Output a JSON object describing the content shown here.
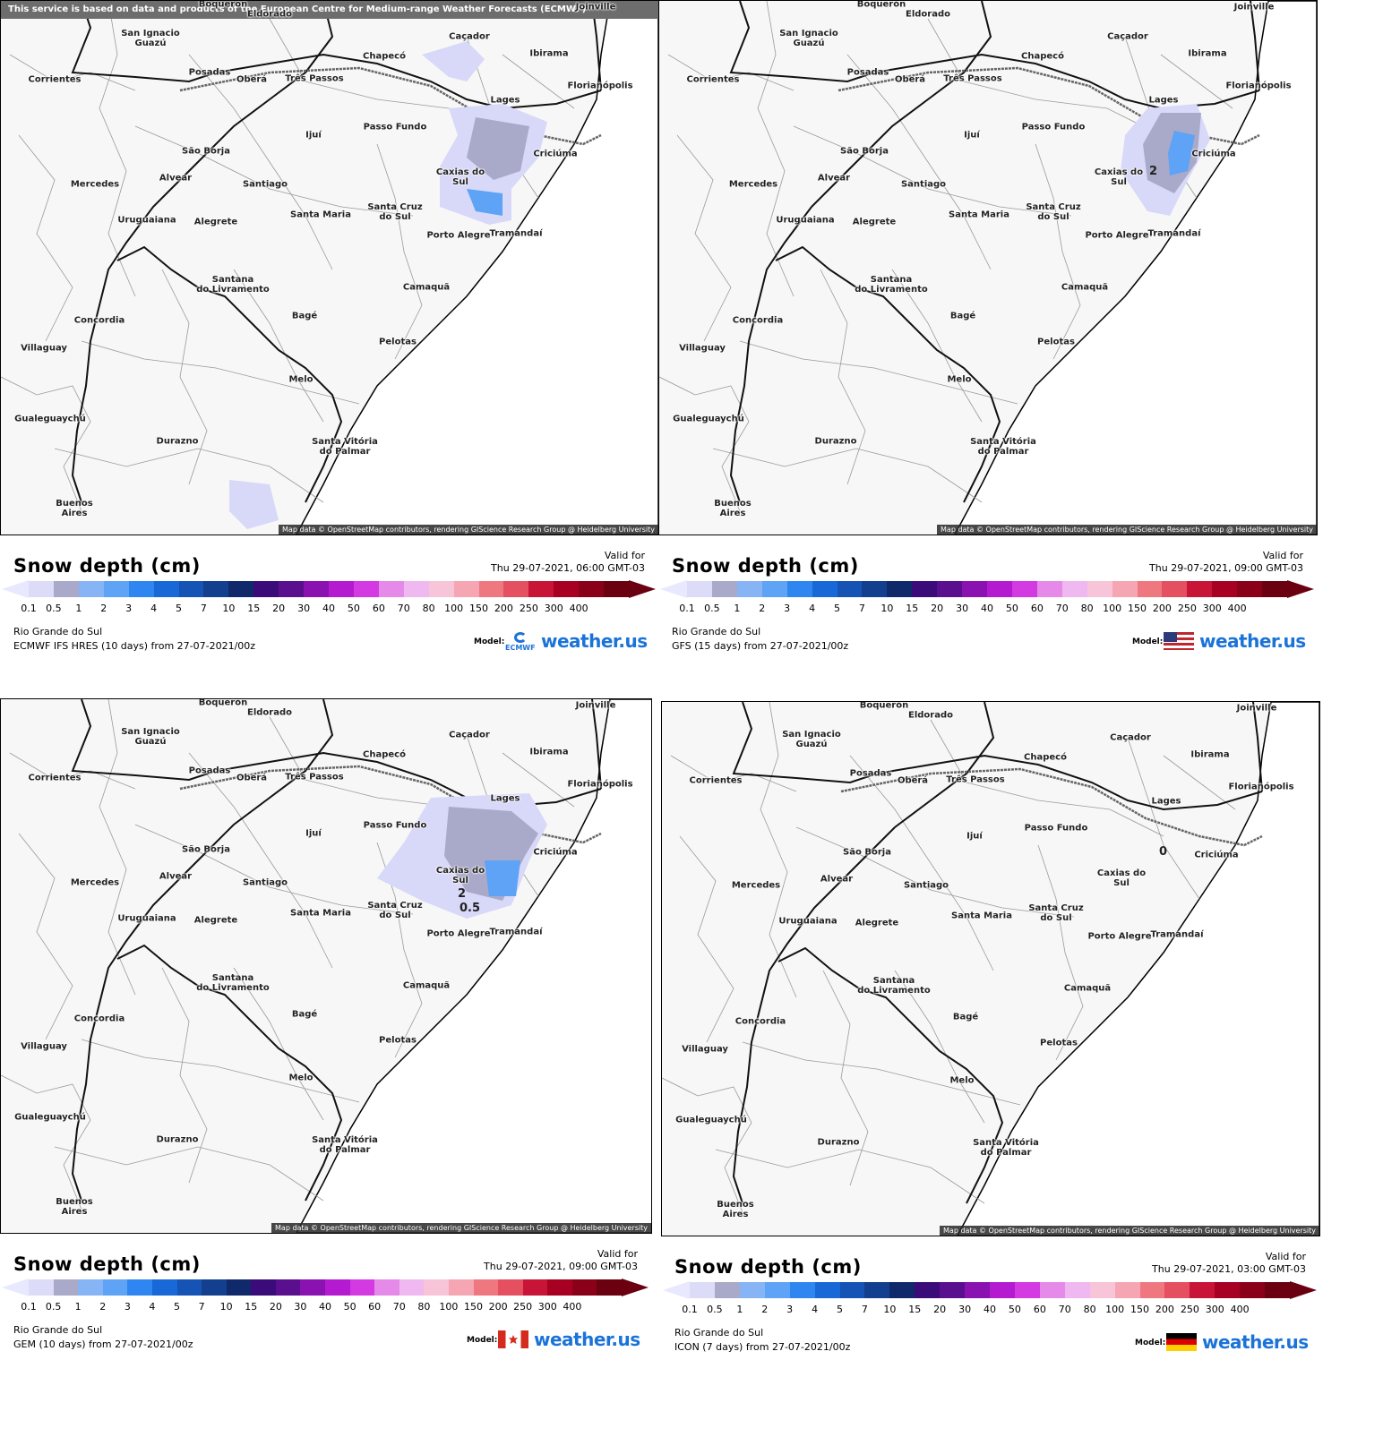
{
  "panels": [
    {
      "id": "p1",
      "top_note": "This service is based on data and products of the European Centre for Medium-range Weather Forecasts (ECMWF)",
      "title": "Snow depth (cm)",
      "valid_label": "Valid for",
      "valid_time": "Thu 29-07-2021, 06:00 GMT-03",
      "region": "Rio Grande do Sul",
      "model_run": "ECMWF IFS HRES (10 days)  from  27-07-2021/00z",
      "model_label": "Model:",
      "model_logo": "ecmwf-logo",
      "model_logo_text": "ECMWF",
      "brand": "weather.us",
      "attribution": "Map data © OpenStreetMap contributors, rendering GIScience Research Group @ Heidelberg University",
      "contour_labels": []
    },
    {
      "id": "p2",
      "title": "Snow depth (cm)",
      "valid_label": "Valid for",
      "valid_time": "Thu 29-07-2021, 09:00 GMT-03",
      "region": "Rio Grande do Sul",
      "model_run": "GFS (15 days)  from  27-07-2021/00z",
      "model_label": "Model:",
      "model_logo": "us-flag",
      "brand": "weather.us",
      "attribution": "Map data © OpenStreetMap contributors, rendering GIScience Research Group @ Heidelberg University",
      "contour_labels": [
        "2"
      ]
    },
    {
      "id": "p3",
      "title": "Snow depth (cm)",
      "valid_label": "Valid for",
      "valid_time": "Thu 29-07-2021, 09:00 GMT-03",
      "region": "Rio Grande do Sul",
      "model_run": "GEM (10 days)  from  27-07-2021/00z",
      "model_label": "Model:",
      "model_logo": "canada-flag",
      "brand": "weather.us",
      "attribution": "Map data © OpenStreetMap contributors, rendering GIScience Research Group @ Heidelberg University",
      "contour_labels": [
        "0.5",
        "2"
      ]
    },
    {
      "id": "p4",
      "title": "Snow depth (cm)",
      "valid_label": "Valid for",
      "valid_time": "Thu 29-07-2021, 03:00 GMT-03",
      "region": "Rio Grande do Sul",
      "model_run": "ICON (7 days)  from  27-07-2021/00z",
      "model_label": "Model:",
      "model_logo": "germany-flag",
      "brand": "weather.us",
      "attribution": "Map data © OpenStreetMap contributors, rendering GIScience Research Group @ Heidelberg University",
      "contour_labels": [
        "0"
      ]
    }
  ],
  "scale": {
    "ticks": [
      "0.1",
      "0.5",
      "1",
      "2",
      "3",
      "4",
      "5",
      "7",
      "10",
      "15",
      "20",
      "30",
      "40",
      "50",
      "60",
      "70",
      "80",
      "100",
      "150",
      "200",
      "250",
      "300",
      "400"
    ],
    "colors": [
      "#dcdcf8",
      "#a9a9c9",
      "#86b4f5",
      "#5ea3f5",
      "#2f86f0",
      "#1868d8",
      "#1553b5",
      "#133f8f",
      "#10296a",
      "#3b0b7a",
      "#5a0f8f",
      "#8a12b0",
      "#b41bd0",
      "#d43ae2",
      "#e58ae8",
      "#f0b8f0",
      "#f7c4d8",
      "#f6a6b3",
      "#ef7880",
      "#e45060",
      "#c81436",
      "#a80022",
      "#8a0018",
      "#6a0010"
    ]
  },
  "cities": [
    {
      "name": "San Ignacio\nGuazú"
    },
    {
      "name": "Caçador"
    },
    {
      "name": "Chapecó"
    },
    {
      "name": "Ibirama"
    },
    {
      "name": "Posadas"
    },
    {
      "name": "Oberá"
    },
    {
      "name": "Três Passos"
    },
    {
      "name": "Corrientes"
    },
    {
      "name": "Florianópolis"
    },
    {
      "name": "Lages"
    },
    {
      "name": "Passo Fundo"
    },
    {
      "name": "Ijuí"
    },
    {
      "name": "São Borja"
    },
    {
      "name": "Criciúma"
    },
    {
      "name": "Caxias do\nSul"
    },
    {
      "name": "Mercedes"
    },
    {
      "name": "Alvear"
    },
    {
      "name": "Santiago"
    },
    {
      "name": "Uruguaiana"
    },
    {
      "name": "Alegrete"
    },
    {
      "name": "Santa Maria"
    },
    {
      "name": "Santa Cruz\ndo Sul"
    },
    {
      "name": "Porto Alegre"
    },
    {
      "name": "Tramandaí"
    },
    {
      "name": "Santana\ndo Livramento"
    },
    {
      "name": "Camaquã"
    },
    {
      "name": "Concordia"
    },
    {
      "name": "Bagé"
    },
    {
      "name": "Villaguay"
    },
    {
      "name": "Pelotas"
    },
    {
      "name": "Melo"
    },
    {
      "name": "Gualeguaychú"
    },
    {
      "name": "Durazno"
    },
    {
      "name": "Santa Vitória\ndo Palmar"
    },
    {
      "name": "Buenos\nAires"
    },
    {
      "name": "Boquerón"
    },
    {
      "name": "Eldorado"
    },
    {
      "name": "Joinville"
    }
  ]
}
